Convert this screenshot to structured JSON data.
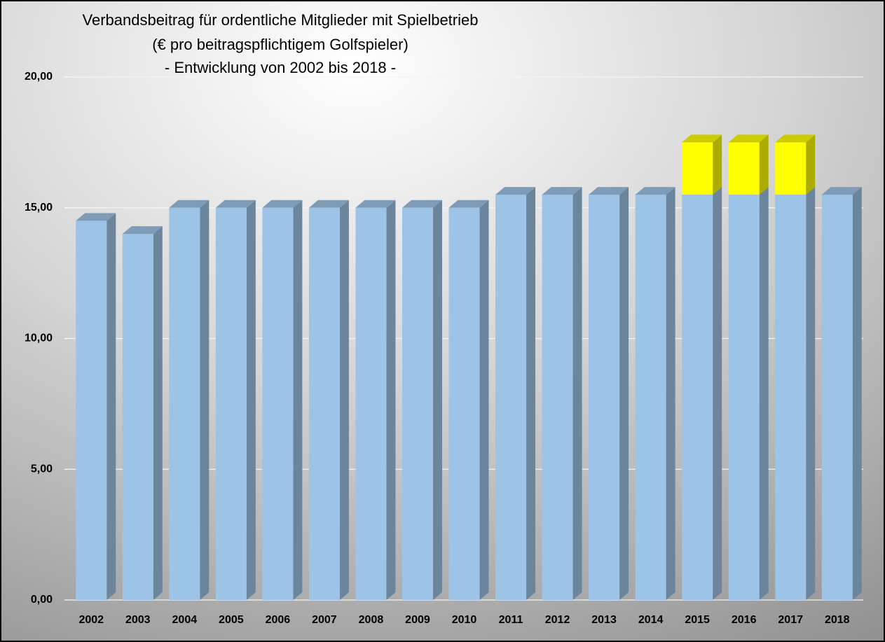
{
  "chart_data": {
    "type": "bar",
    "stacked": true,
    "title": [
      "Verbandsbeitrag für ordentliche Mitglieder mit Spielbetrieb",
      "(€ pro beitragspflichtigem Golfspieler)",
      "- Entwicklung von 2002 bis 2018 -"
    ],
    "categories": [
      "2002",
      "2003",
      "2004",
      "2005",
      "2006",
      "2007",
      "2008",
      "2009",
      "2010",
      "2011",
      "2012",
      "2013",
      "2014",
      "2015",
      "2016",
      "2017",
      "2018"
    ],
    "series": [
      {
        "color": "#9dc3e6",
        "values": [
          14.5,
          14,
          15,
          15,
          15,
          15,
          15,
          15,
          15,
          15.5,
          15.5,
          15.5,
          15.5,
          15.5,
          15.5,
          15.5,
          15.5
        ]
      },
      {
        "color": "#ffff00",
        "values": [
          null,
          null,
          null,
          null,
          null,
          null,
          null,
          null,
          null,
          null,
          null,
          null,
          null,
          2,
          2,
          2,
          null
        ]
      }
    ],
    "ylim": [
      0,
      20
    ],
    "yticks": [
      {
        "value": 0,
        "label": "0,00"
      },
      {
        "value": 5,
        "label": "5,00"
      },
      {
        "value": 10,
        "label": "10,00"
      },
      {
        "value": 15,
        "label": "15,00"
      },
      {
        "value": 20,
        "label": "20,00"
      }
    ],
    "grid": true
  }
}
